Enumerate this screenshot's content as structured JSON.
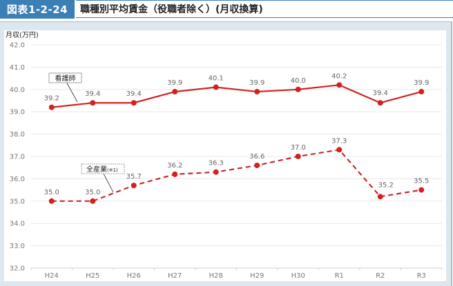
{
  "header": {
    "figure_label": "図表1-2-24",
    "title": "職種別平均賃金（役職者除く）(月収換算)"
  },
  "colors": {
    "label_bg": "#3a7fb5",
    "series": "#d42020",
    "frame_bg": "#dde7ef"
  },
  "chart_data": {
    "type": "line",
    "title": "職種別平均賃金（役職者除く）(月収換算)",
    "xlabel": "",
    "ylabel": "月収(万円)",
    "ylim": [
      32.0,
      42.0
    ],
    "yticks": [
      "42.0",
      "41.0",
      "40.0",
      "39.0",
      "38.0",
      "37.0",
      "36.0",
      "35.0",
      "34.0",
      "33.0",
      "32.0"
    ],
    "grid": true,
    "categories": [
      "H24",
      "H25",
      "H26",
      "H27",
      "H28",
      "H29",
      "H30",
      "R1",
      "R2",
      "R3"
    ],
    "series": [
      {
        "name": "看護師",
        "style": "solid",
        "color": "#d42020",
        "values": [
          39.2,
          39.4,
          39.4,
          39.9,
          40.1,
          39.9,
          40.0,
          40.2,
          39.4,
          39.9
        ],
        "labels": [
          "39.2",
          "39.4",
          "39.4",
          "39.9",
          "40.1",
          "39.9",
          "40.0",
          "40.2",
          "39.4",
          "39.9"
        ]
      },
      {
        "name": "全産業(※1)",
        "style": "dashed",
        "color": "#d42020",
        "values": [
          35.0,
          35.0,
          35.7,
          36.2,
          36.3,
          36.6,
          37.0,
          37.3,
          35.2,
          35.5
        ],
        "labels": [
          "35.0",
          "35.0",
          "35.7",
          "36.2",
          "36.3",
          "36.6",
          "37.0",
          "37.3",
          "35.2",
          "35.5"
        ]
      }
    ],
    "legend": {
      "position": "inline-callouts",
      "entries": [
        "看護師",
        "全産業(※1)"
      ]
    }
  },
  "callouts": {
    "nurse": "看護師",
    "all_industry_main": "全産業",
    "all_industry_note": "(※1)"
  }
}
